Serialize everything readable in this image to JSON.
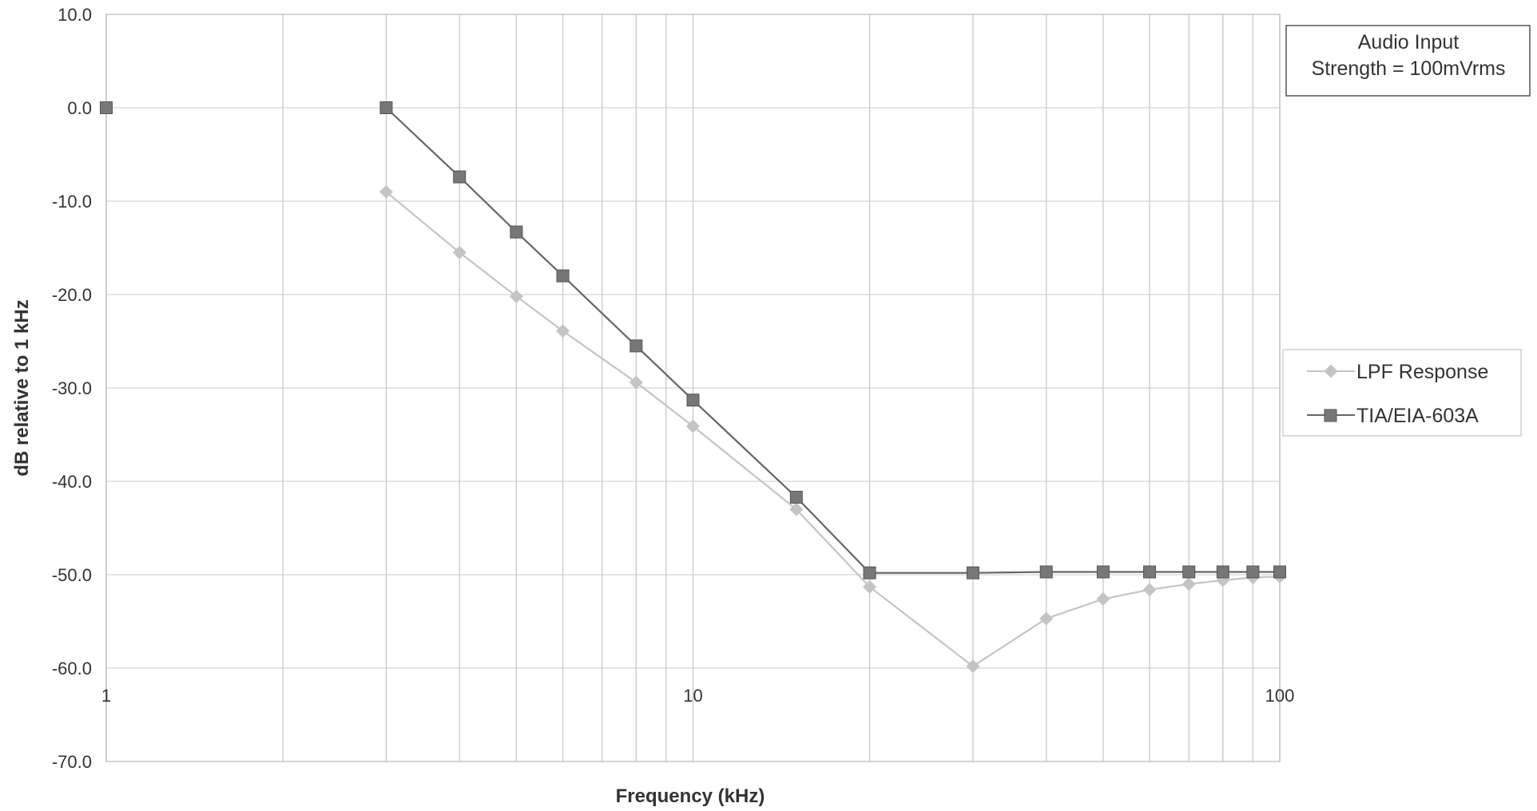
{
  "chart_data": {
    "type": "line",
    "title": "",
    "xlabel": "Frequency (kHz)",
    "ylabel": "dB relative to 1 kHz",
    "xscale": "log",
    "xlim": [
      1,
      100
    ],
    "ylim": [
      -70,
      10
    ],
    "x_tick_labels": [
      "1",
      "10",
      "100"
    ],
    "x_tick_values": [
      1,
      10,
      100
    ],
    "y_tick_values": [
      10,
      0,
      -10,
      -20,
      -30,
      -40,
      -50,
      -60,
      -70
    ],
    "y_tick_labels": [
      "10.0",
      "0.0",
      "-10.0",
      "-20.0",
      "-30.0",
      "-40.0",
      "-50.0",
      "-60.0",
      "-70.0"
    ],
    "grid": true,
    "legend_position": "right",
    "annotation": {
      "lines": [
        "Audio Input",
        "Strength = 100mVrms"
      ],
      "position": "top-right"
    },
    "series": [
      {
        "name": "LPF Response",
        "marker": "diamond",
        "color": "#c4c4c4",
        "x": [
          3,
          4,
          5,
          6,
          8,
          10,
          15,
          20,
          30,
          40,
          50,
          60,
          70,
          80,
          90,
          100
        ],
        "y": [
          -9.0,
          -15.5,
          -20.2,
          -23.9,
          -29.4,
          -34.1,
          -43.0,
          -51.3,
          -59.8,
          -54.7,
          -52.6,
          -51.6,
          -51.0,
          -50.6,
          -50.3,
          -50.2
        ]
      },
      {
        "name": "TIA/EIA-603A",
        "marker": "square",
        "color": "#666666",
        "x": [
          1,
          3,
          4,
          5,
          6,
          8,
          10,
          15,
          20,
          30,
          40,
          50,
          60,
          70,
          80,
          90,
          100
        ],
        "y": [
          0.0,
          0.0,
          -7.4,
          -13.3,
          -18.0,
          -25.5,
          -31.3,
          -41.7,
          -49.8,
          -49.8,
          -49.7,
          -49.7,
          -49.7,
          -49.7,
          -49.7,
          -49.7,
          -49.7
        ]
      }
    ]
  }
}
